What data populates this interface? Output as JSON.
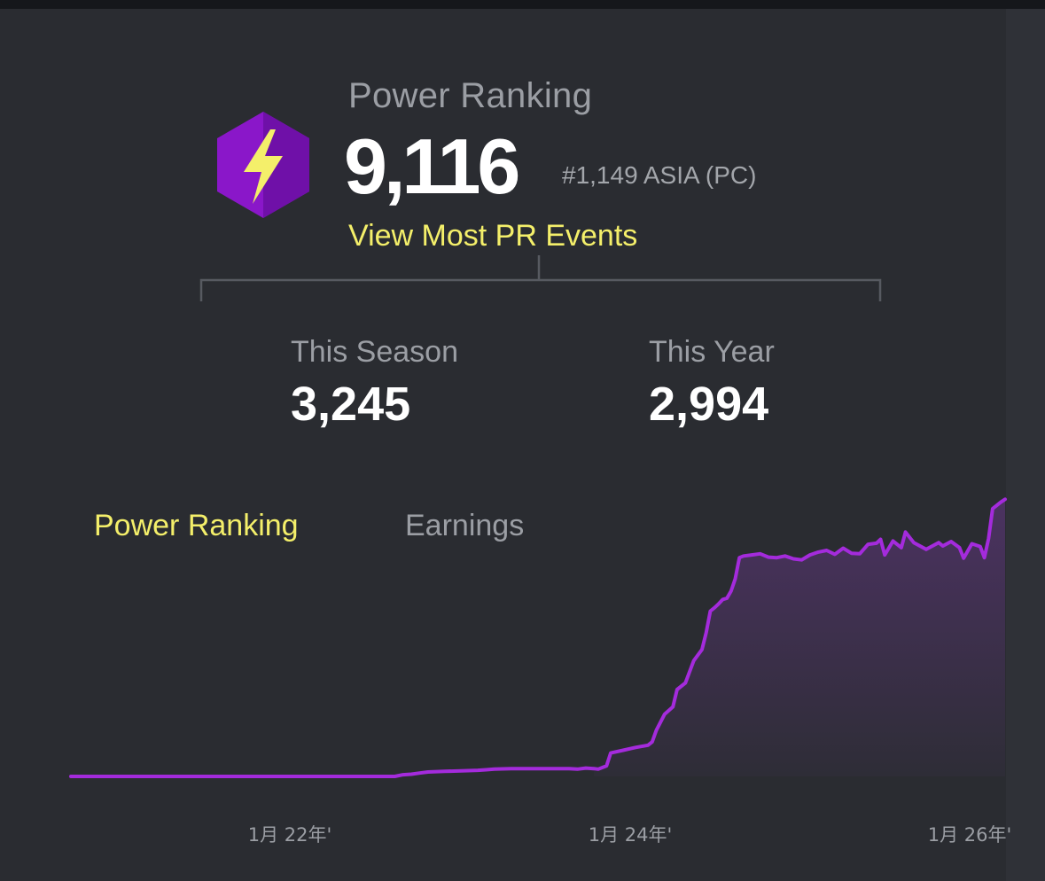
{
  "power_ranking": {
    "label": "Power Ranking",
    "value": "9,116",
    "region_rank": "#1,149 ASIA (PC)",
    "link_label": "View Most PR Events",
    "badge_icon": "lightning-bolt-icon"
  },
  "stats": {
    "season": {
      "label": "This Season",
      "value": "3,245"
    },
    "year": {
      "label": "This Year",
      "value": "2,994"
    }
  },
  "tabs": {
    "power_ranking": "Power Ranking",
    "earnings": "Earnings"
  },
  "colors": {
    "accent_yellow": "#f4ef6a",
    "line_purple": "#a42bdc",
    "badge_purple": "#8a17c9",
    "background": "#2a2c31"
  },
  "chart_data": {
    "type": "area",
    "title": "",
    "xlabel": "",
    "ylabel": "",
    "x_tick_labels": [
      "1月 22年'",
      "1月 24年'",
      "1月 26年'"
    ],
    "grid": false,
    "series": [
      {
        "points": [
          [
            0,
            0
          ],
          [
            0.1,
            0
          ],
          [
            0.2,
            0
          ],
          [
            0.3,
            0
          ],
          [
            0.4,
            0
          ],
          [
            0.5,
            0
          ],
          [
            0.6,
            0
          ],
          [
            0.7,
            0
          ],
          [
            0.8,
            0
          ],
          [
            0.9,
            0
          ],
          [
            1.0,
            0
          ],
          [
            1.1,
            0
          ],
          [
            1.2,
            0
          ],
          [
            1.3,
            0
          ],
          [
            1.4,
            0
          ],
          [
            1.5,
            0
          ],
          [
            1.6,
            0
          ],
          [
            1.7,
            0
          ],
          [
            1.8,
            0
          ],
          [
            1.9,
            0
          ],
          [
            2.0,
            0
          ],
          [
            2.2,
            0
          ],
          [
            2.4,
            0
          ],
          [
            2.5,
            0
          ],
          [
            2.6,
            0
          ],
          [
            2.8,
            0
          ],
          [
            3.0,
            0
          ],
          [
            3.1,
            0
          ],
          [
            3.2,
            0
          ],
          [
            3.3,
            0
          ],
          [
            3.4,
            0
          ],
          [
            3.5,
            0
          ],
          [
            3.6,
            0
          ],
          [
            3.7,
            0
          ],
          [
            3.8,
            0
          ],
          [
            3.9,
            0
          ],
          [
            4.0,
            0.3
          ],
          [
            4.1,
            0.4
          ],
          [
            4.2,
            0.6
          ],
          [
            4.3,
            0.8
          ],
          [
            4.5,
            0.9
          ],
          [
            4.7,
            1.0
          ],
          [
            4.9,
            1.1
          ],
          [
            5.0,
            1.2
          ],
          [
            5.1,
            1.3
          ],
          [
            5.3,
            1.4
          ],
          [
            5.5,
            1.4
          ],
          [
            5.7,
            1.4
          ],
          [
            5.9,
            1.4
          ],
          [
            6.0,
            1.4
          ],
          [
            6.1,
            1.3
          ],
          [
            6.2,
            1.5
          ],
          [
            6.3,
            1.4
          ],
          [
            6.35,
            1.3
          ],
          [
            6.45,
            1.9
          ],
          [
            6.5,
            4.2
          ],
          [
            6.65,
            4.7
          ],
          [
            6.8,
            5.2
          ],
          [
            6.95,
            5.6
          ],
          [
            7.0,
            6.2
          ],
          [
            7.05,
            8.3
          ],
          [
            7.15,
            11.2
          ],
          [
            7.25,
            12.5
          ],
          [
            7.3,
            15.6
          ],
          [
            7.4,
            16.8
          ],
          [
            7.5,
            20.8
          ],
          [
            7.6,
            22.8
          ],
          [
            7.65,
            25.8
          ],
          [
            7.7,
            29.7
          ],
          [
            7.75,
            30.3
          ],
          [
            7.8,
            31.0
          ],
          [
            7.85,
            31.8
          ],
          [
            7.9,
            32.0
          ],
          [
            7.95,
            33.3
          ],
          [
            8.0,
            35.5
          ],
          [
            8.05,
            39.3
          ],
          [
            8.1,
            39.6
          ],
          [
            8.2,
            39.8
          ],
          [
            8.3,
            40.0
          ],
          [
            8.4,
            39.4
          ],
          [
            8.5,
            39.3
          ],
          [
            8.6,
            39.6
          ],
          [
            8.7,
            39.1
          ],
          [
            8.8,
            38.9
          ],
          [
            8.9,
            39.8
          ],
          [
            9.0,
            40.3
          ],
          [
            9.1,
            40.6
          ],
          [
            9.2,
            39.9
          ],
          [
            9.3,
            41.0
          ],
          [
            9.4,
            40.1
          ],
          [
            9.5,
            40.0
          ],
          [
            9.6,
            41.7
          ],
          [
            9.7,
            41.9
          ],
          [
            9.75,
            42.6
          ],
          [
            9.8,
            39.8
          ],
          [
            9.9,
            42.3
          ],
          [
            10.0,
            41.1
          ],
          [
            10.05,
            43.9
          ],
          [
            10.15,
            42.0
          ],
          [
            10.2,
            41.6
          ],
          [
            10.3,
            40.8
          ],
          [
            10.45,
            42.0
          ],
          [
            10.5,
            41.4
          ],
          [
            10.6,
            42.2
          ],
          [
            10.7,
            41.1
          ],
          [
            10.75,
            39.2
          ],
          [
            10.85,
            41.8
          ],
          [
            10.95,
            41.3
          ],
          [
            11.0,
            39.3
          ],
          [
            11.05,
            42.7
          ],
          [
            11.1,
            48.1
          ],
          [
            11.2,
            49.3
          ],
          [
            11.25,
            49.8
          ]
        ]
      }
    ]
  }
}
